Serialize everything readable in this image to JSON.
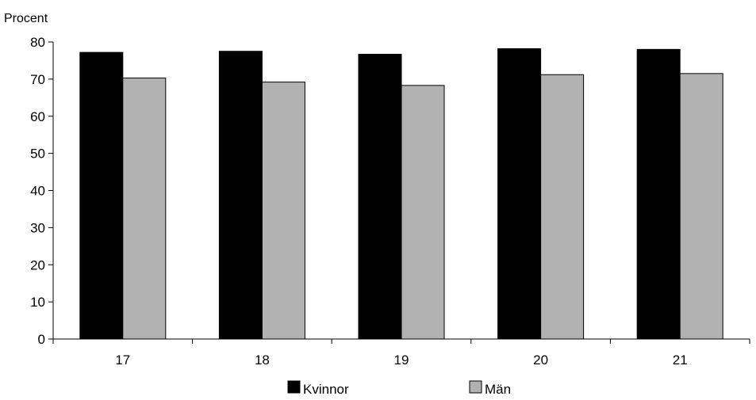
{
  "chart_data": {
    "type": "bar",
    "title": "",
    "ylabel": "Procent",
    "xlabel": "",
    "categories": [
      "17",
      "18",
      "19",
      "20",
      "21"
    ],
    "series": [
      {
        "name": "Kvinnor",
        "values": [
          77.2,
          77.5,
          76.7,
          78.2,
          78.0
        ],
        "color": "#000000"
      },
      {
        "name": "Män",
        "values": [
          70.3,
          69.2,
          68.3,
          71.2,
          71.5
        ],
        "color": "#b2b2b2"
      }
    ],
    "ylim": [
      0,
      80
    ],
    "yticks": [
      0,
      10,
      20,
      30,
      40,
      50,
      60,
      70,
      80
    ],
    "grid": false,
    "legend_position": "bottom-center"
  }
}
